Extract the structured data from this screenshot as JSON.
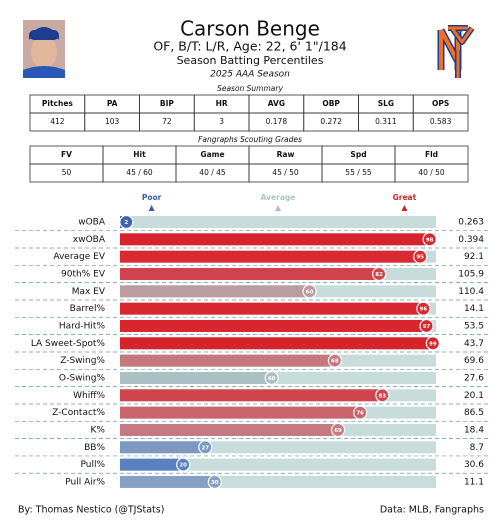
{
  "header": {
    "title": "Carson Benge",
    "subtitle": "OF, B/T: L/R, Age: 22, 6' 1\"/184",
    "line3": "Season Batting Percentiles",
    "line4": "2025 AAA Season"
  },
  "summary": {
    "title": "Season Summary",
    "headers": [
      "Pitches",
      "PA",
      "BIP",
      "HR",
      "AVG",
      "OBP",
      "SLG",
      "OPS"
    ],
    "row": [
      "412",
      "103",
      "72",
      "3",
      "0.178",
      "0.272",
      "0.311",
      "0.583"
    ]
  },
  "scouting": {
    "title": "Fangraphs Scouting Grades",
    "headers": [
      "FV",
      "Hit",
      "Game",
      "Raw",
      "Spd",
      "Fld"
    ],
    "row": [
      "50",
      "45 / 60",
      "40 / 45",
      "45 / 50",
      "55 / 55",
      "40 / 50"
    ]
  },
  "chart_data": {
    "type": "bar",
    "categories": [
      "wOBA",
      "xwOBA",
      "Average EV",
      "90th% EV",
      "Max EV",
      "Barrel%",
      "Hard-Hit%",
      "LA Sweet-Spot%",
      "Z-Swing%",
      "O-Swing%",
      "Whiff%",
      "Z-Contact%",
      "K%",
      "BB%",
      "Pull%",
      "Pull Air%"
    ],
    "values": [
      2,
      98,
      95,
      82,
      60,
      96,
      97,
      99,
      68,
      48,
      83,
      76,
      69,
      27,
      20,
      30
    ],
    "colors": [
      "#3d63b3",
      "#d7232d",
      "#d92a33",
      "#d0434d",
      "#bb9ca1",
      "#d82730",
      "#d8262f",
      "#d6222b",
      "#c4797f",
      "#abbfc4",
      "#d0444d",
      "#c9646b",
      "#c47a80",
      "#7e99c1",
      "#5b80bf",
      "#85a0c3"
    ],
    "stat_values": [
      0.263,
      0.394,
      92.1,
      105.9,
      110.4,
      14.1,
      53.5,
      43.7,
      69.6,
      27.6,
      20.1,
      86.5,
      18.4,
      8.7,
      30.6,
      11.1
    ],
    "xlim": [
      0,
      100
    ],
    "markers": [
      {
        "label": "Poor",
        "value": 10,
        "color": "#3a5fa8"
      },
      {
        "label": "Average",
        "value": 50,
        "color": "#a9c4c9"
      },
      {
        "label": "Great",
        "value": 90,
        "color": "#c8262f"
      }
    ]
  },
  "footer": {
    "left": "By: Thomas Nestico (@TJStats)",
    "right": "Data: MLB, Fangraphs"
  }
}
